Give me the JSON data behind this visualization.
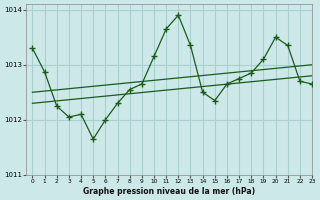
{
  "xlabel": "Graphe pression niveau de la mer (hPa)",
  "bg_color": "#cce8e8",
  "grid_color": "#aacfcf",
  "line_color": "#1a5c1a",
  "xlim": [
    -0.5,
    23
  ],
  "ylim": [
    1011,
    1014.1
  ],
  "yticks": [
    1011,
    1012,
    1013,
    1014
  ],
  "xticks": [
    0,
    1,
    2,
    3,
    4,
    5,
    6,
    7,
    8,
    9,
    10,
    11,
    12,
    13,
    14,
    15,
    16,
    17,
    18,
    19,
    20,
    21,
    22,
    23
  ],
  "main_x": [
    0,
    1,
    2,
    3,
    4,
    5,
    6,
    7,
    8,
    9,
    10,
    11,
    12,
    13,
    14,
    15,
    16,
    17,
    18,
    19,
    20,
    21,
    22,
    23
  ],
  "main_y": [
    1013.3,
    1012.87,
    1012.25,
    1012.05,
    1012.1,
    1011.65,
    1012.0,
    1012.3,
    1012.55,
    1012.65,
    1013.15,
    1013.65,
    1013.9,
    1013.35,
    1012.5,
    1012.35,
    1012.65,
    1012.75,
    1012.85,
    1013.1,
    1013.5,
    1013.35,
    1012.7,
    1012.65
  ],
  "trend1_x": [
    0,
    23
  ],
  "trend1_y": [
    1012.3,
    1012.8
  ],
  "trend2_x": [
    0,
    23
  ],
  "trend2_y": [
    1012.5,
    1013.0
  ]
}
